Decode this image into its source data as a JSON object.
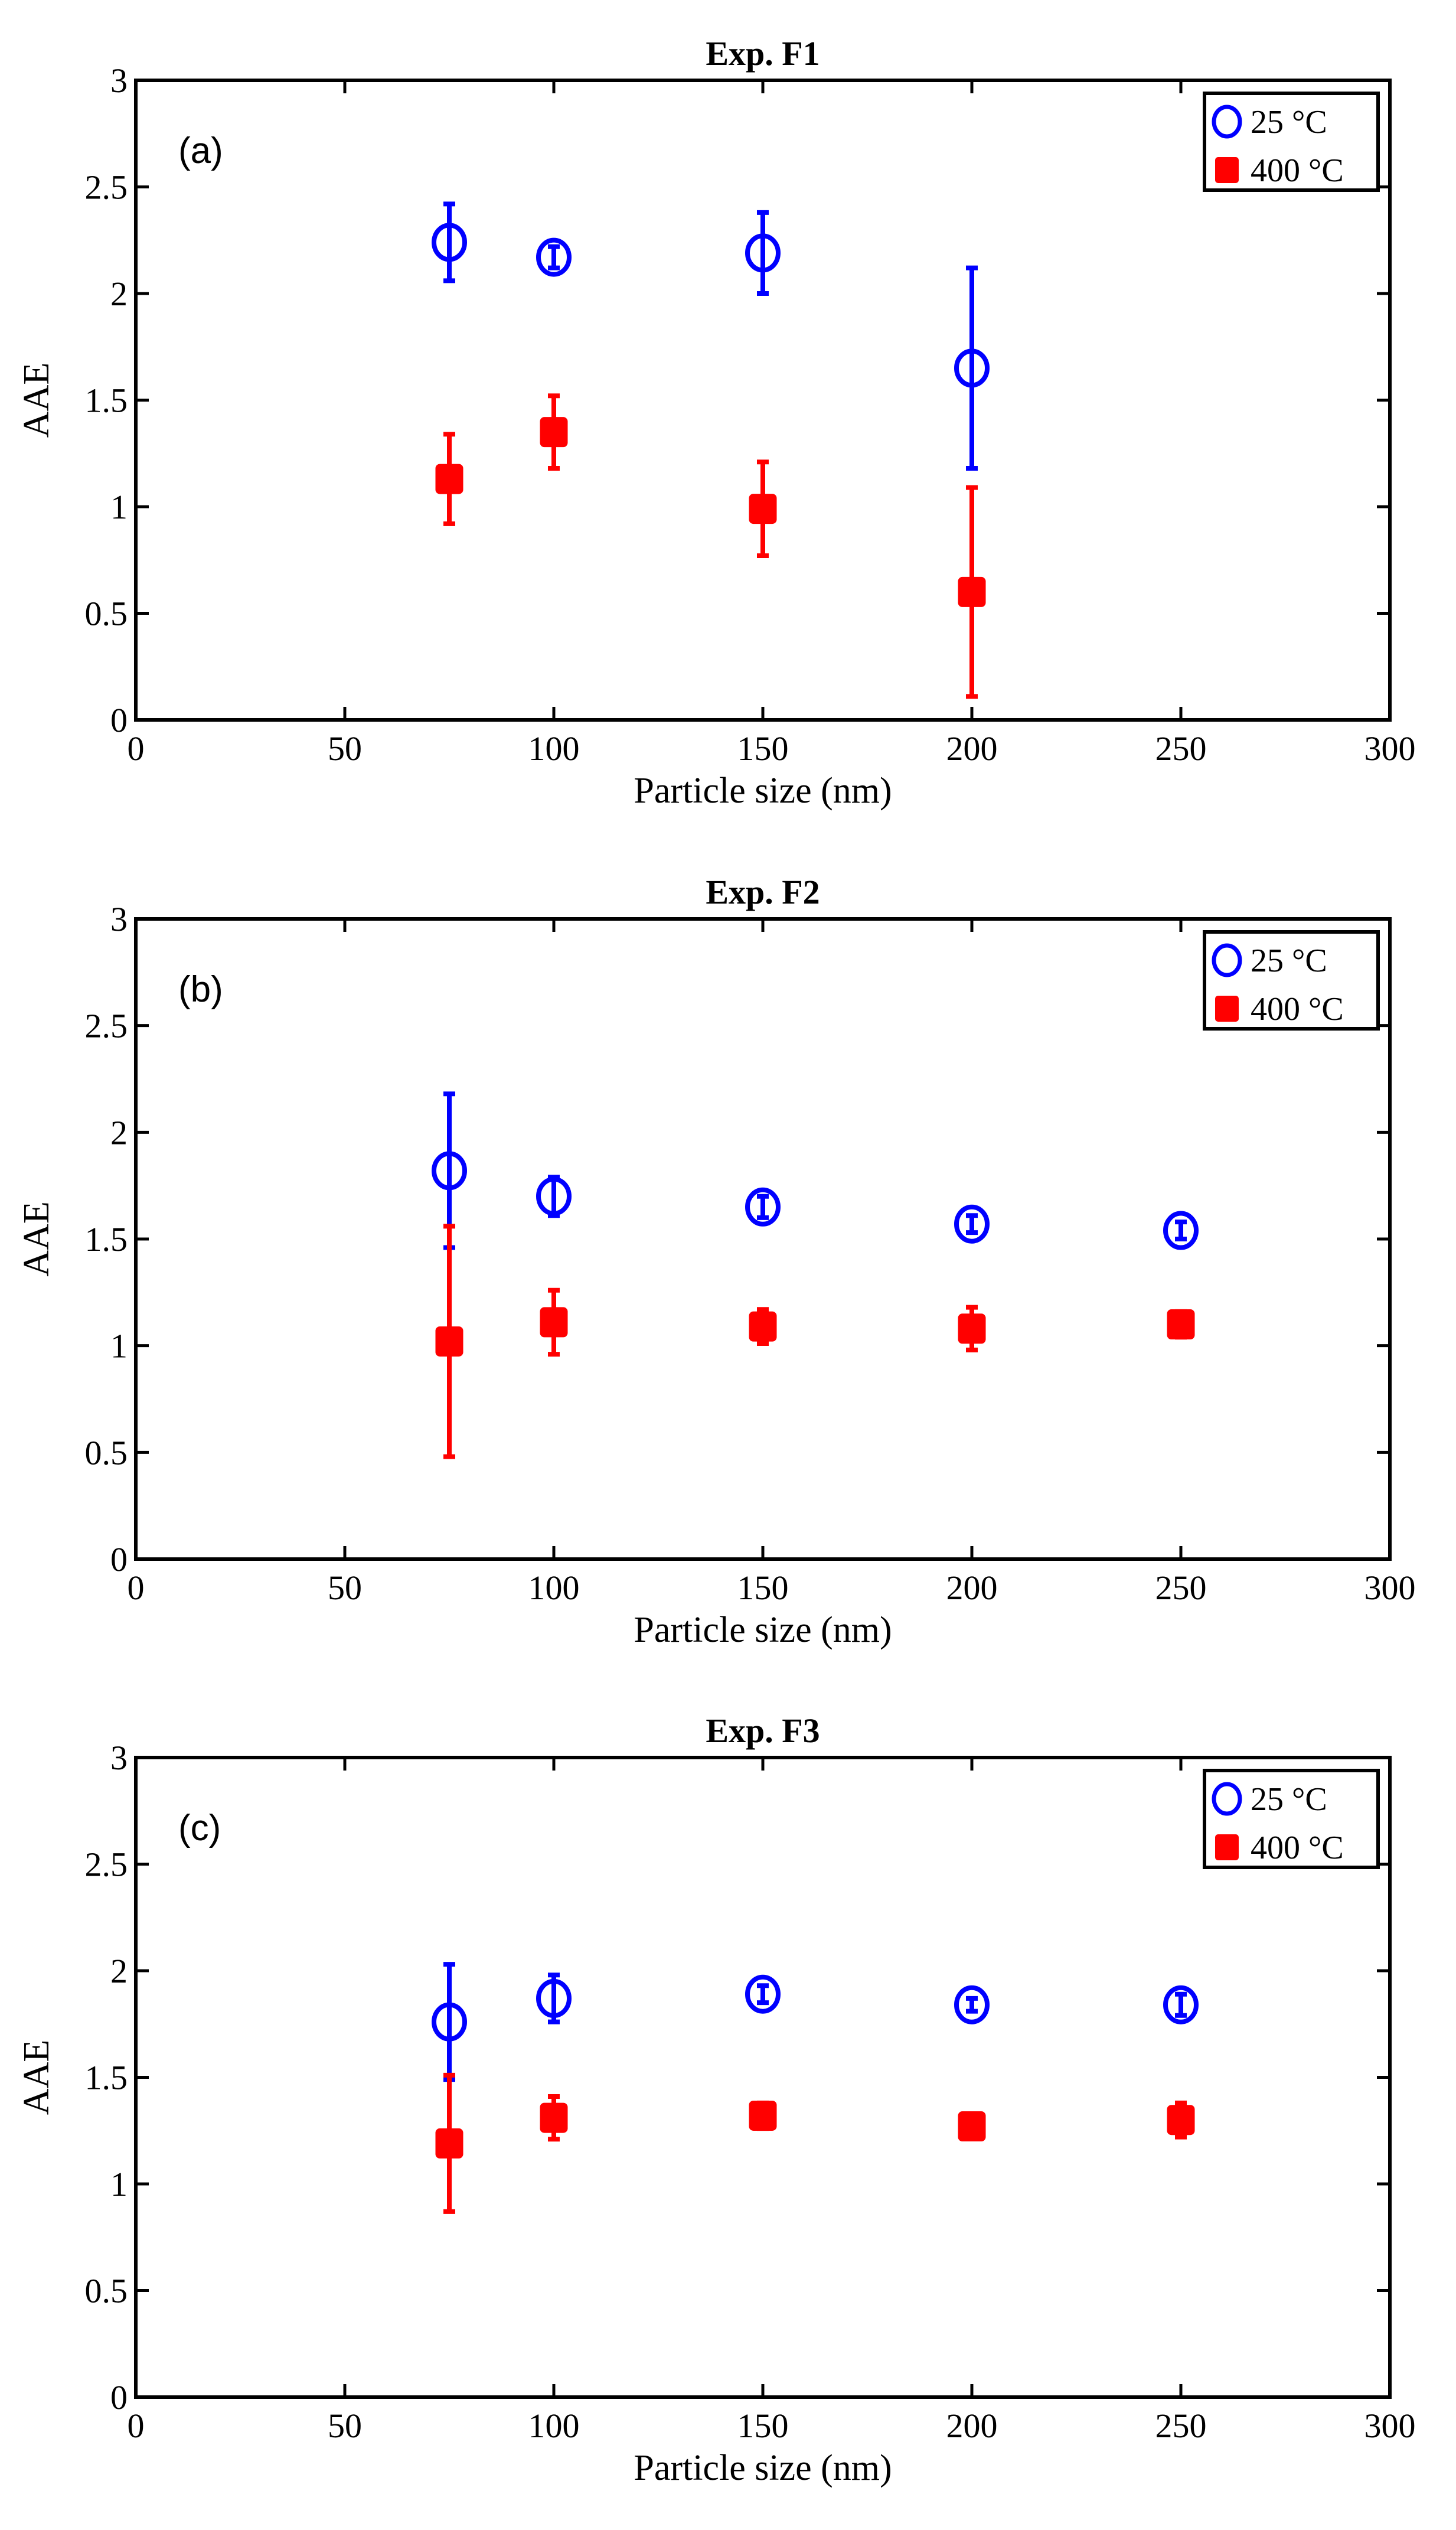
{
  "chart_data": [
    {
      "type": "scatter",
      "panel_label": "(a)",
      "title": "Exp. F1",
      "xlabel": "Particle size (nm)",
      "ylabel": "AAE",
      "xlim": [
        0,
        300
      ],
      "ylim": [
        0,
        3
      ],
      "xticks": [
        0,
        50,
        100,
        150,
        200,
        250,
        300
      ],
      "yticks": [
        0,
        0.5,
        1,
        1.5,
        2,
        2.5,
        3
      ],
      "xtick_labels": [
        "0",
        "50",
        "100",
        "150",
        "200",
        "250",
        "300"
      ],
      "ytick_labels": [
        "0",
        "0.5",
        "1",
        "1.5",
        "2",
        "2.5",
        "3"
      ],
      "grid": false,
      "legend_position": "top-right",
      "series": [
        {
          "name": "25 °C",
          "marker": "open-circle",
          "color": "#0000ff",
          "x": [
            75,
            100,
            150,
            200
          ],
          "y": [
            2.24,
            2.17,
            2.19,
            1.65
          ],
          "err": [
            0.18,
            0.05,
            0.19,
            0.47
          ]
        },
        {
          "name": "400 °C",
          "marker": "filled-square",
          "color": "#ff0000",
          "x": [
            75,
            100,
            150,
            200
          ],
          "y": [
            1.13,
            1.35,
            0.99,
            0.6
          ],
          "err": [
            0.21,
            0.17,
            0.22,
            0.49
          ]
        }
      ]
    },
    {
      "type": "scatter",
      "panel_label": "(b)",
      "title": "Exp. F2",
      "xlabel": "Particle size (nm)",
      "ylabel": "AAE",
      "xlim": [
        0,
        300
      ],
      "ylim": [
        0,
        3
      ],
      "xticks": [
        0,
        50,
        100,
        150,
        200,
        250,
        300
      ],
      "yticks": [
        0,
        0.5,
        1,
        1.5,
        2,
        2.5,
        3
      ],
      "xtick_labels": [
        "0",
        "50",
        "100",
        "150",
        "200",
        "250",
        "300"
      ],
      "ytick_labels": [
        "0",
        "0.5",
        "1",
        "1.5",
        "2",
        "2.5",
        "3"
      ],
      "grid": false,
      "legend_position": "top-right",
      "series": [
        {
          "name": "25 °C",
          "marker": "open-circle",
          "color": "#0000ff",
          "x": [
            75,
            100,
            150,
            200,
            250
          ],
          "y": [
            1.82,
            1.7,
            1.65,
            1.57,
            1.54
          ],
          "err": [
            0.36,
            0.09,
            0.05,
            0.04,
            0.04
          ]
        },
        {
          "name": "400 °C",
          "marker": "filled-square",
          "color": "#ff0000",
          "x": [
            75,
            100,
            150,
            200,
            250
          ],
          "y": [
            1.02,
            1.11,
            1.09,
            1.08,
            1.1
          ],
          "err": [
            0.54,
            0.15,
            0.08,
            0.1,
            0.06
          ]
        }
      ]
    },
    {
      "type": "scatter",
      "panel_label": "(c)",
      "title": "Exp. F3",
      "xlabel": "Particle size (nm)",
      "ylabel": "AAE",
      "xlim": [
        0,
        300
      ],
      "ylim": [
        0,
        3
      ],
      "xticks": [
        0,
        50,
        100,
        150,
        200,
        250,
        300
      ],
      "yticks": [
        0,
        0.5,
        1,
        1.5,
        2,
        2.5,
        3
      ],
      "xtick_labels": [
        "0",
        "50",
        "100",
        "150",
        "200",
        "250",
        "300"
      ],
      "ytick_labels": [
        "0",
        "0.5",
        "1",
        "1.5",
        "2",
        "2.5",
        "3"
      ],
      "grid": false,
      "legend_position": "top-right",
      "series": [
        {
          "name": "25 °C",
          "marker": "open-circle",
          "color": "#0000ff",
          "x": [
            75,
            100,
            150,
            200,
            250
          ],
          "y": [
            1.76,
            1.87,
            1.89,
            1.84,
            1.84
          ],
          "err": [
            0.27,
            0.11,
            0.04,
            0.03,
            0.05
          ]
        },
        {
          "name": "400 °C",
          "marker": "filled-square",
          "color": "#ff0000",
          "x": [
            75,
            100,
            150,
            200,
            250
          ],
          "y": [
            1.19,
            1.31,
            1.32,
            1.27,
            1.3
          ],
          "err": [
            0.32,
            0.1,
            0.06,
            0.05,
            0.08
          ]
        }
      ]
    }
  ]
}
